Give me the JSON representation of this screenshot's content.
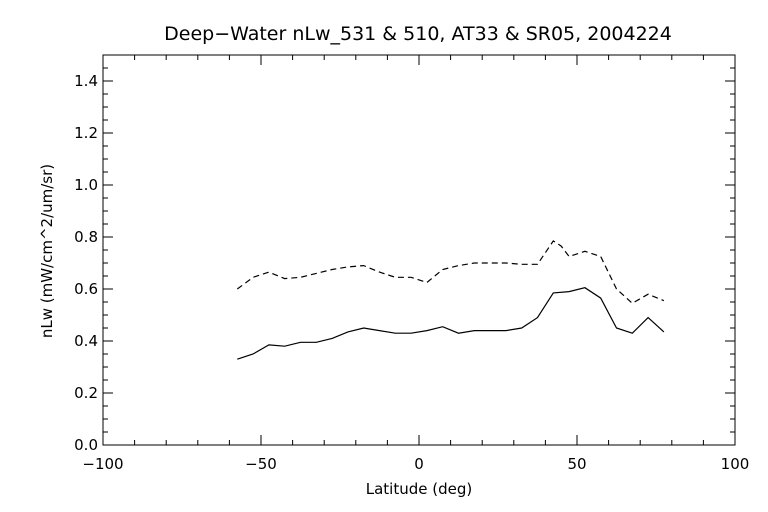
{
  "chart_data": {
    "type": "line",
    "title": "Deep−Water nLw_531 & 510, AT33 & SR05, 2004224",
    "xlabel": "Latitude (deg)",
    "ylabel": "nLw (mW/cm^2/um/sr)",
    "xlim": [
      -100,
      100
    ],
    "ylim": [
      0.0,
      1.5
    ],
    "xticks": [
      -100,
      -50,
      0,
      50,
      100
    ],
    "xtick_labels": [
      "−100",
      "−50",
      "0",
      "50",
      "100"
    ],
    "yticks": [
      0.0,
      0.2,
      0.4,
      0.6,
      0.8,
      1.0,
      1.2,
      1.4
    ],
    "ytick_labels": [
      "0.0",
      "0.2",
      "0.4",
      "0.6",
      "0.8",
      "1.0",
      "1.2",
      "1.4"
    ],
    "grid": false,
    "series": [
      {
        "style": "solid",
        "x": [
          -57.5,
          -52.5,
          -47.5,
          -42.5,
          -37.5,
          -32.5,
          -27.5,
          -22.5,
          -17.5,
          -12.5,
          -7.5,
          -2.5,
          2.5,
          7.5,
          12.5,
          17.5,
          22.5,
          27.5,
          32.5,
          37.5,
          42.5,
          47.5,
          52.5,
          57.5,
          62.5,
          67.5,
          72.5,
          77.5
        ],
        "y": [
          0.33,
          0.35,
          0.385,
          0.38,
          0.395,
          0.395,
          0.41,
          0.435,
          0.45,
          0.44,
          0.43,
          0.43,
          0.44,
          0.455,
          0.43,
          0.44,
          0.44,
          0.44,
          0.45,
          0.49,
          0.585,
          0.59,
          0.605,
          0.565,
          0.45,
          0.43,
          0.49,
          0.435
        ]
      },
      {
        "style": "dashed",
        "x": [
          -57.5,
          -52.5,
          -47.5,
          -42.5,
          -37.5,
          -32.5,
          -27.5,
          -22.5,
          -17.5,
          -12.5,
          -7.5,
          -2.5,
          2.5,
          7.5,
          12.5,
          17.5,
          22.5,
          27.5,
          32.5,
          37.5,
          42.5,
          45.0,
          47.5,
          52.5,
          57.5,
          62.5,
          67.5,
          72.5,
          77.5
        ],
        "y": [
          0.6,
          0.645,
          0.665,
          0.64,
          0.645,
          0.66,
          0.675,
          0.685,
          0.69,
          0.665,
          0.645,
          0.645,
          0.625,
          0.675,
          0.69,
          0.7,
          0.7,
          0.7,
          0.695,
          0.695,
          0.785,
          0.765,
          0.725,
          0.745,
          0.725,
          0.6,
          0.545,
          0.58,
          0.555
        ]
      }
    ]
  }
}
